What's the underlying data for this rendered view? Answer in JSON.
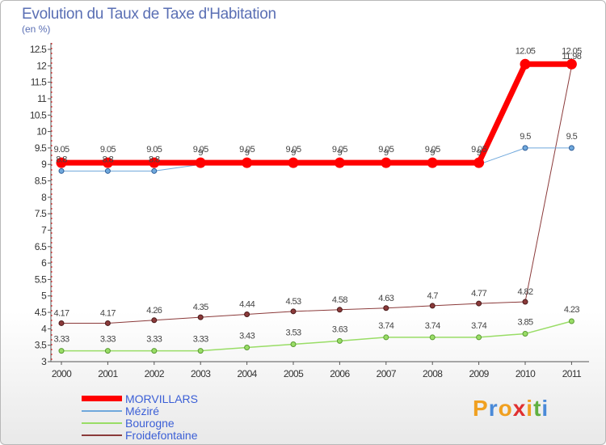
{
  "header": {
    "title": "Evolution du Taux de Taxe d'Habitation",
    "subtitle": "(en %)"
  },
  "brand": {
    "letters": [
      "P",
      "r",
      "o",
      "x",
      "i",
      "t",
      "i"
    ],
    "colors": [
      "#f0a020",
      "#4a8ad8",
      "#f0a020",
      "#e03030",
      "#f0a020",
      "#60b040",
      "#4a8ad8"
    ]
  },
  "chart_data": {
    "type": "line",
    "title": "Evolution du Taux de Taxe d'Habitation",
    "subtitle": "(en %)",
    "xlabel": "",
    "ylabel": "(en %)",
    "categories": [
      "2000",
      "2001",
      "2002",
      "2003",
      "2004",
      "2005",
      "2006",
      "2007",
      "2008",
      "2009",
      "2010",
      "2011"
    ],
    "ylim": [
      3,
      12.5
    ],
    "yticks": [
      "3",
      "3.5",
      "4",
      "4.5",
      "5",
      "5.5",
      "6",
      "6.5",
      "7",
      "7.5",
      "8",
      "8.5",
      "9",
      "9.5",
      "10",
      "10.5",
      "11",
      "11.5",
      "12",
      "12.5"
    ],
    "series": [
      {
        "name": "MORVILLARS",
        "color": "#ff0000",
        "values": [
          9.05,
          9.05,
          9.05,
          9.05,
          9.05,
          9.05,
          9.05,
          9.05,
          9.05,
          9.05,
          12.05,
          12.05
        ],
        "labels": [
          "9.05",
          "9.05",
          "9.05",
          "9.05",
          "9.05",
          "9.05",
          "9.05",
          "9.05",
          "9.05",
          "9.05",
          "12.05",
          "12.05"
        ]
      },
      {
        "name": "Méziré",
        "color": "#6fa8dc",
        "values": [
          8.8,
          8.8,
          8.8,
          9,
          9,
          9,
          9,
          9,
          9,
          9,
          9.5,
          9.5
        ],
        "labels": [
          "8.8",
          "8.8",
          "8.8",
          "9",
          "9",
          "9",
          "9",
          "9",
          "9",
          "9",
          "9.5",
          "9.5"
        ]
      },
      {
        "name": "Bourogne",
        "color": "#99dd66",
        "values": [
          3.33,
          3.33,
          3.33,
          3.33,
          3.43,
          3.53,
          3.63,
          3.74,
          3.74,
          3.74,
          3.85,
          4.23
        ],
        "labels": [
          "3.33",
          "3.33",
          "3.33",
          "3.33",
          "3.43",
          "3.53",
          "3.63",
          "3.74",
          "3.74",
          "3.74",
          "3.85",
          "4.23"
        ]
      },
      {
        "name": "Froidefontaine",
        "color": "#8b3a3a",
        "values": [
          4.17,
          4.17,
          4.26,
          4.35,
          4.44,
          4.53,
          4.58,
          4.63,
          4.7,
          4.77,
          4.82,
          11.98
        ],
        "labels": [
          "4.17",
          "4.17",
          "4.26",
          "4.35",
          "4.44",
          "4.53",
          "4.58",
          "4.63",
          "4.7",
          "4.77",
          "4.82",
          "11.98"
        ]
      }
    ],
    "legend": [
      "MORVILLARS",
      "Méziré",
      "Bourogne",
      "Froidefontaine"
    ],
    "legend_position": "bottom-left",
    "grid": false
  }
}
